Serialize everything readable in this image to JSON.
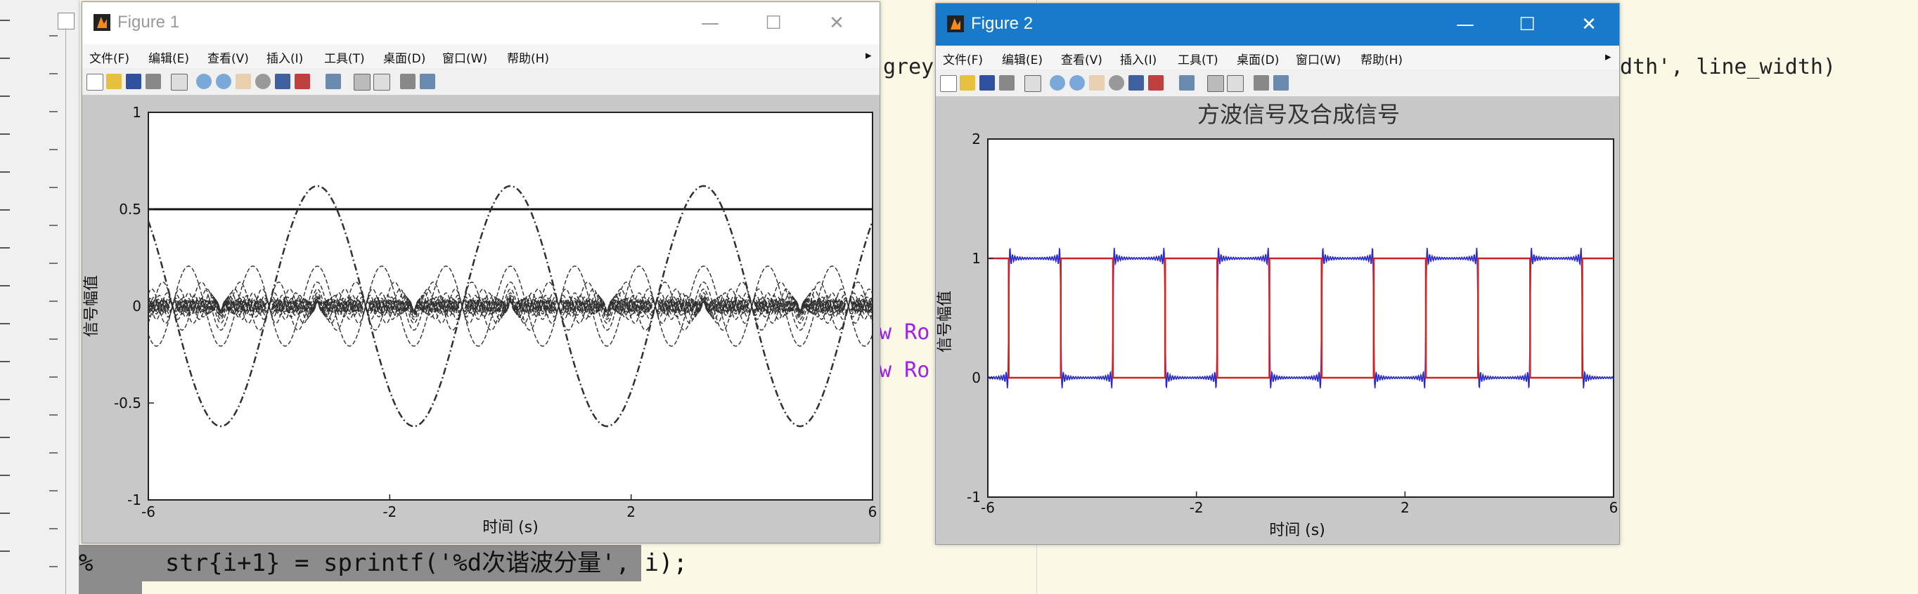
{
  "editor": {
    "code_fragment_1": "grey",
    "code_fragment_2": "dth', line_width)",
    "code_fragment_3": "ew Ro",
    "code_fragment_4": "ew Ro",
    "comment_line": "%     str{i+1} = sprintf('%d次谐波分量', i);"
  },
  "figure1": {
    "title": "Figure 1",
    "menus": [
      "文件(F)",
      "编辑(E)",
      "查看(V)",
      "插入(I)",
      "工具(T)",
      "桌面(D)",
      "窗口(W)",
      "帮助(H)"
    ],
    "ylabel": "信号幅值",
    "xlabel": "时间 (s)",
    "yticks": [
      "1",
      "0.5",
      "0",
      "-0.5",
      "-1"
    ],
    "xticks": [
      "-6",
      "-2",
      "2",
      "6"
    ]
  },
  "figure2": {
    "title": "Figure 2",
    "menus": [
      "文件(F)",
      "编辑(E)",
      "查看(V)",
      "插入(I)",
      "工具(T)",
      "桌面(D)",
      "窗口(W)",
      "帮助(H)"
    ],
    "plot_title": "方波信号及合成信号",
    "ylabel": "信号幅值",
    "xlabel": "时间 (s)",
    "yticks": [
      "2",
      "1",
      "0",
      "-1"
    ],
    "xticks": [
      "-6",
      "-2",
      "2",
      "6"
    ]
  },
  "window_controls": {
    "minimize": "—",
    "maximize": "☐",
    "close": "✕"
  },
  "colors": {
    "square_wave": "#d42020",
    "synthesized": "#2a2acc",
    "harmonics": "#303030",
    "titlebar_active": "#1979ca"
  },
  "chart_data": [
    {
      "type": "line",
      "title": "",
      "xlabel": "时间 (s)",
      "ylabel": "信号幅值",
      "xlim": [
        -6,
        6
      ],
      "ylim": [
        -1,
        1
      ],
      "series": [
        {
          "values_note_free": true,
          "x": [
            -6,
            -5,
            -4,
            -3,
            -2,
            -1,
            0,
            1,
            2,
            3,
            4,
            5,
            6
          ],
          "y": [
            0.5,
            0.5,
            0.5,
            0.5,
            0.5,
            0.5,
            0.5,
            0.5,
            0.5,
            0.5,
            0.5,
            0.5,
            0.5
          ]
        },
        {
          "x": [
            -6,
            -5.5,
            -5,
            -4.5,
            -4,
            -3.5,
            -3,
            -2.5,
            -2,
            -1.5,
            -1,
            -0.5,
            0,
            0.5,
            1,
            1.5,
            2,
            2.5,
            3,
            3.5,
            4,
            4.5,
            5,
            5.5,
            6
          ],
          "y": [
            0.62,
            0,
            -0.62,
            0,
            0.62,
            0,
            -0.62,
            0,
            0.62,
            0,
            -0.62,
            0,
            0.62,
            0,
            -0.62,
            0,
            0.62,
            0,
            -0.62,
            0,
            0.62,
            0,
            -0.62,
            0,
            0.62
          ]
        }
      ]
    },
    {
      "type": "line",
      "title": "方波信号及合成信号",
      "xlabel": "时间 (s)",
      "ylabel": "信号幅值",
      "xlim": [
        -6,
        6
      ],
      "ylim": [
        -1,
        2
      ],
      "series": [
        {
          "x": [
            -6,
            -5.6,
            -5.6,
            -4.6,
            -4.6,
            -3.6,
            -3.6,
            -2.6,
            -2.6,
            -1.6,
            -1.6,
            -0.6,
            -0.6,
            0.4,
            0.4,
            1.4,
            1.4,
            2.4,
            2.4,
            3.4,
            3.4,
            4.4,
            4.4,
            5.4,
            5.4,
            6
          ],
          "y": [
            1,
            1,
            0,
            0,
            1,
            1,
            0,
            0,
            1,
            1,
            0,
            0,
            1,
            1,
            0,
            0,
            1,
            1,
            0,
            0,
            1,
            1,
            0,
            0,
            1,
            1
          ]
        }
      ]
    }
  ]
}
